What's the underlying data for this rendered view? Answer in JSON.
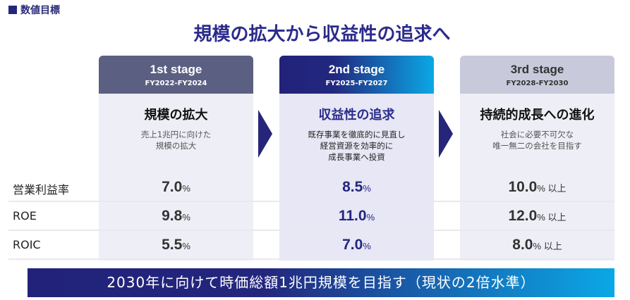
{
  "section_label": "数値目標",
  "title": "規模の拡大から収益性の追求へ",
  "stages": [
    {
      "name": "1st stage",
      "period": "FY2022-FY2024",
      "heading": "規模の拡大",
      "desc": [
        "売上1兆円に向けた",
        "規模の拡大"
      ]
    },
    {
      "name": "2nd stage",
      "period": "FY2025-FY2027",
      "heading": "収益性の追求",
      "desc": [
        "既存事業を徹底的に見直し",
        "経営資源を効率的に",
        "成長事業へ投資"
      ]
    },
    {
      "name": "3rd stage",
      "period": "FY2028-FY2030",
      "heading": "持続的成長への進化",
      "desc": [
        "社会に必要不可欠な",
        "唯一無二の会社を目指す"
      ]
    }
  ],
  "metrics": [
    {
      "label": "営業利益率",
      "values": [
        "7.0",
        "8.5",
        "10.0"
      ]
    },
    {
      "label": "ROE",
      "values": [
        "9.8",
        "11.0",
        "12.0"
      ]
    },
    {
      "label": "ROIC",
      "values": [
        "5.5",
        "7.0",
        "8.0"
      ]
    }
  ],
  "unit": "%",
  "suffix": "以上",
  "banner": "2030年に向けて時価総額1兆円規模を目指す（現状の2倍水準）",
  "colors": {
    "accent": "#25257a",
    "gradient_end": "#0aa8e6"
  }
}
